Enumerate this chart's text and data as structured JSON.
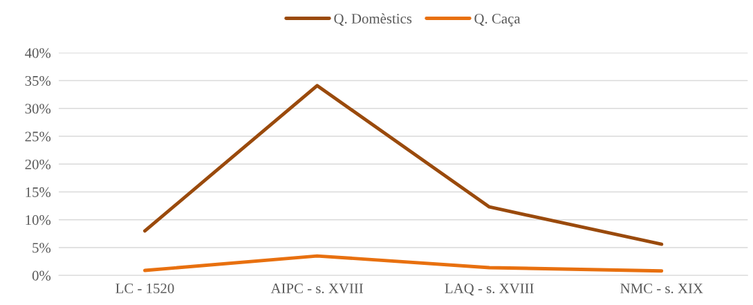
{
  "chart_data": {
    "type": "line",
    "categories": [
      "LC - 1520",
      "AIPC - s. XVIII",
      "LAQ - s. XVIII",
      "NMC - s. XIX"
    ],
    "series": [
      {
        "name": "Q. Domèstics",
        "color": "#9a4a0c",
        "values": [
          8.0,
          34.1,
          12.3,
          5.6
        ]
      },
      {
        "name": "Q. Caça",
        "color": "#e8700f",
        "values": [
          0.9,
          3.5,
          1.4,
          0.8
        ]
      }
    ],
    "ylim": [
      0,
      40
    ],
    "yticks": [
      {
        "value": 0,
        "label": "0%"
      },
      {
        "value": 5,
        "label": "5%"
      },
      {
        "value": 10,
        "label": "10%"
      },
      {
        "value": 15,
        "label": "15%"
      },
      {
        "value": 20,
        "label": "20%"
      },
      {
        "value": 25,
        "label": "25%"
      },
      {
        "value": 30,
        "label": "30%"
      },
      {
        "value": 35,
        "label": "35%"
      },
      {
        "value": 40,
        "label": "40%"
      }
    ],
    "grid": "y",
    "legend": "top",
    "marker": "none",
    "line_style": "solid"
  }
}
